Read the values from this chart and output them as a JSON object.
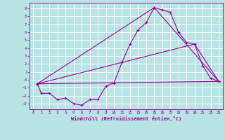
{
  "title": "",
  "xlabel": "Windchill (Refroidissement éolien,°C)",
  "ylabel": "",
  "bg_color": "#b8e4e4",
  "grid_color": "#ffffff",
  "line_color": "#990099",
  "xlim": [
    -0.5,
    23.5
  ],
  "ylim": [
    -3.7,
    9.7
  ],
  "xticks": [
    0,
    1,
    2,
    3,
    4,
    5,
    6,
    7,
    8,
    9,
    10,
    11,
    12,
    13,
    14,
    15,
    16,
    17,
    18,
    19,
    20,
    21,
    22,
    23
  ],
  "yticks": [
    -3,
    -2,
    -1,
    0,
    1,
    2,
    3,
    4,
    5,
    6,
    7,
    8,
    9
  ],
  "series": [
    [
      0.5,
      -0.5
    ],
    [
      1,
      -1.7
    ],
    [
      2,
      -1.7
    ],
    [
      3,
      -2.5
    ],
    [
      4,
      -2.3
    ],
    [
      5,
      -3.0
    ],
    [
      6,
      -3.2
    ],
    [
      7,
      -2.5
    ],
    [
      8,
      -2.5
    ],
    [
      9,
      -0.8
    ],
    [
      10,
      -0.4
    ],
    [
      11,
      2.2
    ],
    [
      12,
      4.5
    ],
    [
      13,
      6.3
    ],
    [
      14,
      7.2
    ],
    [
      15,
      9.1
    ],
    [
      16,
      8.8
    ],
    [
      17,
      8.5
    ],
    [
      18,
      6.0
    ],
    [
      19,
      4.7
    ],
    [
      20,
      4.5
    ],
    [
      21,
      1.8
    ],
    [
      22,
      0.2
    ],
    [
      23,
      -0.2
    ]
  ],
  "line2": [
    [
      0.5,
      -0.5
    ],
    [
      23,
      -0.2
    ]
  ],
  "line3": [
    [
      0.5,
      -0.5
    ],
    [
      15,
      9.1
    ],
    [
      23,
      -0.2
    ]
  ],
  "line4": [
    [
      0.5,
      -0.5
    ],
    [
      20,
      4.5
    ],
    [
      23,
      -0.2
    ]
  ]
}
